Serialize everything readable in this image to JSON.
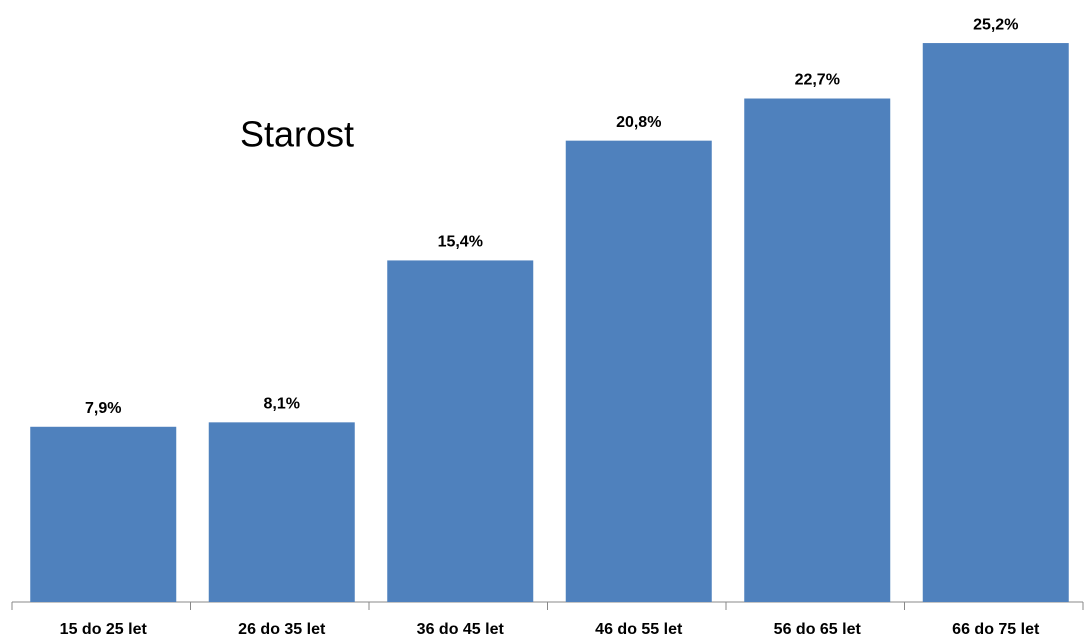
{
  "chart_data": {
    "type": "bar",
    "title": "Starost",
    "categories": [
      "15 do 25 let",
      "26 do 35 let",
      "36 do 45 let",
      "46 do 55 let",
      "56 do 65 let",
      "66 do 75 let"
    ],
    "values": [
      7.9,
      8.1,
      15.4,
      20.8,
      22.7,
      25.2
    ],
    "value_labels": [
      "7,9%",
      "8,1%",
      "15,4%",
      "20,8%",
      "22,7%",
      "25,2%"
    ],
    "color": "#4f81bd"
  }
}
